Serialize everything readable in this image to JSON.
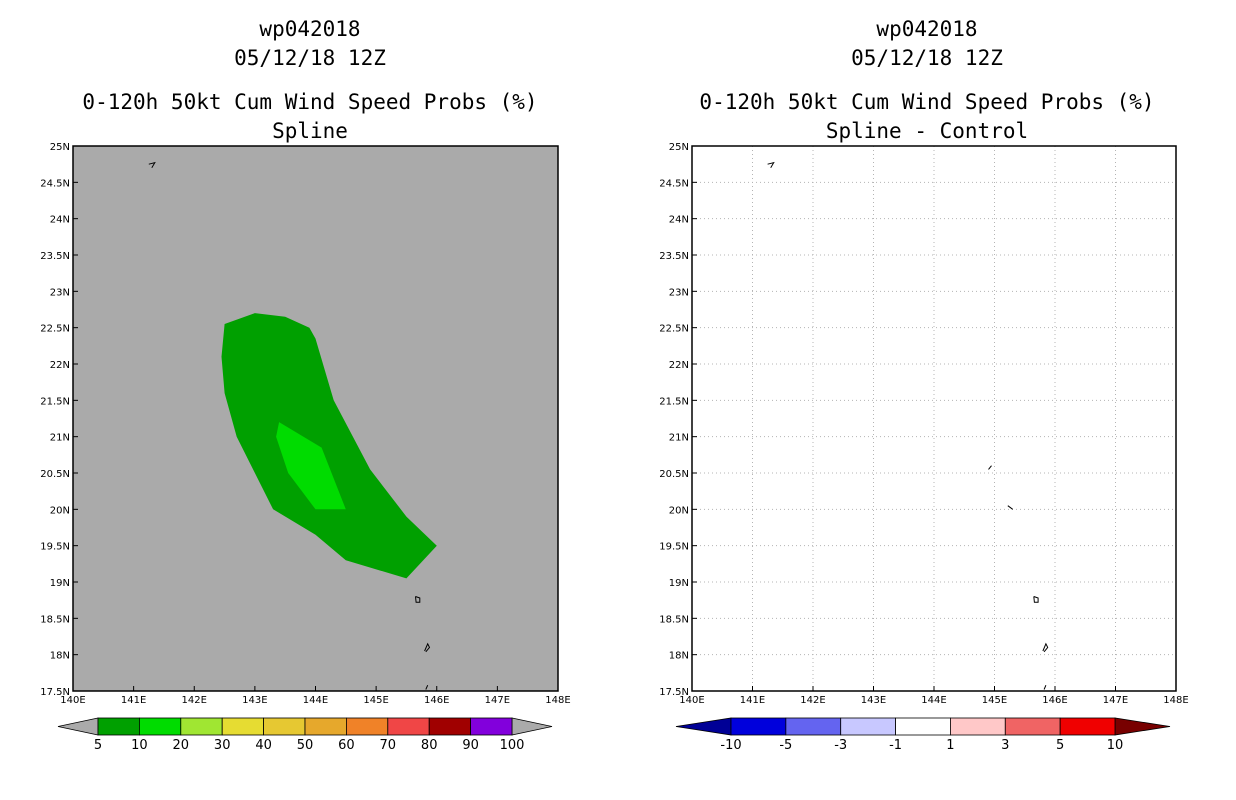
{
  "panels": [
    {
      "title_lines": [
        "wp042018",
        "05/12/18 12Z",
        "0-120h 50kt Cum Wind Speed Probs (%)",
        "Spline"
      ],
      "background": "#aaaaaa"
    },
    {
      "title_lines": [
        "wp042018",
        "05/12/18 12Z",
        "0-120h 50kt Cum Wind Speed Probs (%)",
        "Spline - Control"
      ],
      "background": "#ffffff"
    }
  ],
  "chart_data": [
    {
      "type": "heatmap",
      "title": "0-120h 50kt Cum Wind Speed Probs (%)",
      "subtitle": "Spline",
      "storm": "wp042018",
      "time": "05/12/18 12Z",
      "xlim": [
        140,
        148
      ],
      "ylim": [
        17.5,
        25
      ],
      "x_ticks": [
        "140E",
        "141E",
        "142E",
        "143E",
        "144E",
        "145E",
        "146E",
        "147E",
        "148E"
      ],
      "y_ticks": [
        "17.5N",
        "18N",
        "18.5N",
        "19N",
        "19.5N",
        "20N",
        "20.5N",
        "21N",
        "21.5N",
        "22N",
        "22.5N",
        "23N",
        "23.5N",
        "24N",
        "24.5N",
        "25N"
      ],
      "grid": false,
      "contours": [
        {
          "level": "5-10",
          "color": "#00a000",
          "points": [
            [
              142.5,
              22.55
            ],
            [
              143.0,
              22.7
            ],
            [
              143.5,
              22.65
            ],
            [
              143.9,
              22.5
            ],
            [
              144.0,
              22.35
            ],
            [
              144.3,
              21.5
            ],
            [
              144.9,
              20.55
            ],
            [
              145.5,
              19.9
            ],
            [
              146.0,
              19.5
            ],
            [
              145.5,
              19.05
            ],
            [
              144.5,
              19.3
            ],
            [
              144.0,
              19.65
            ],
            [
              143.3,
              20.0
            ],
            [
              142.7,
              21.0
            ],
            [
              142.5,
              21.6
            ],
            [
              142.45,
              22.1
            ],
            [
              142.5,
              22.55
            ]
          ]
        },
        {
          "level": "10-20",
          "color": "#00dc00",
          "points": [
            [
              143.4,
              21.2
            ],
            [
              144.1,
              20.85
            ],
            [
              144.5,
              20.0
            ],
            [
              144.0,
              20.0
            ],
            [
              143.55,
              20.5
            ],
            [
              143.35,
              21.0
            ],
            [
              143.4,
              21.2
            ]
          ]
        }
      ],
      "colorbar": {
        "labels": [
          "5",
          "10",
          "20",
          "30",
          "40",
          "50",
          "60",
          "70",
          "80",
          "90",
          "100"
        ],
        "colors": [
          "#00a000",
          "#00dc00",
          "#a0e632",
          "#e6dc32",
          "#e6c832",
          "#e6a82c",
          "#f08228",
          "#f04646",
          "#a00000",
          "#8200dc"
        ],
        "extend_color": "#aaaaaa"
      }
    },
    {
      "type": "heatmap",
      "title": "0-120h 50kt Cum Wind Speed Probs (%)",
      "subtitle": "Spline - Control",
      "storm": "wp042018",
      "time": "05/12/18 12Z",
      "xlim": [
        140,
        148
      ],
      "ylim": [
        17.5,
        25
      ],
      "x_ticks": [
        "140E",
        "141E",
        "142E",
        "143E",
        "144E",
        "145E",
        "146E",
        "147E",
        "148E"
      ],
      "y_ticks": [
        "17.5N",
        "18N",
        "18.5N",
        "19N",
        "19.5N",
        "20N",
        "20.5N",
        "21N",
        "21.5N",
        "22N",
        "22.5N",
        "23N",
        "23.5N",
        "24N",
        "24.5N",
        "25N"
      ],
      "grid": true,
      "contours": [],
      "colorbar": {
        "labels": [
          "-10",
          "-5",
          "-3",
          "-1",
          "1",
          "3",
          "5",
          "10"
        ],
        "colors": [
          "#0000dc",
          "#6464f0",
          "#c8c8ff",
          "#ffffff",
          "#ffc8c8",
          "#f06464",
          "#f00000"
        ],
        "low_extend_color": "#000096",
        "high_extend_color": "#780000"
      }
    }
  ],
  "map": {
    "islands": [
      {
        "name": "island-north",
        "points": [
          [
            141.3,
            24.7
          ],
          [
            141.35,
            24.77
          ],
          [
            141.25,
            24.75
          ]
        ]
      },
      {
        "name": "island-guam-north",
        "points": [
          [
            145.65,
            18.8
          ],
          [
            145.72,
            18.78
          ],
          [
            145.72,
            18.72
          ],
          [
            145.66,
            18.72
          ],
          [
            145.65,
            18.8
          ]
        ]
      },
      {
        "name": "island-south",
        "points": [
          [
            145.8,
            18.05
          ],
          [
            145.85,
            18.15
          ],
          [
            145.88,
            18.1
          ],
          [
            145.82,
            18.04
          ]
        ]
      },
      {
        "name": "island-tip",
        "points": [
          [
            145.85,
            17.58
          ],
          [
            145.82,
            17.52
          ]
        ]
      }
    ],
    "control_only_marks": [
      {
        "name": "mark-a",
        "points": [
          [
            144.9,
            20.55
          ],
          [
            144.95,
            20.6
          ]
        ]
      },
      {
        "name": "mark-b",
        "points": [
          [
            145.22,
            20.05
          ],
          [
            145.3,
            20.0
          ]
        ]
      }
    ]
  }
}
